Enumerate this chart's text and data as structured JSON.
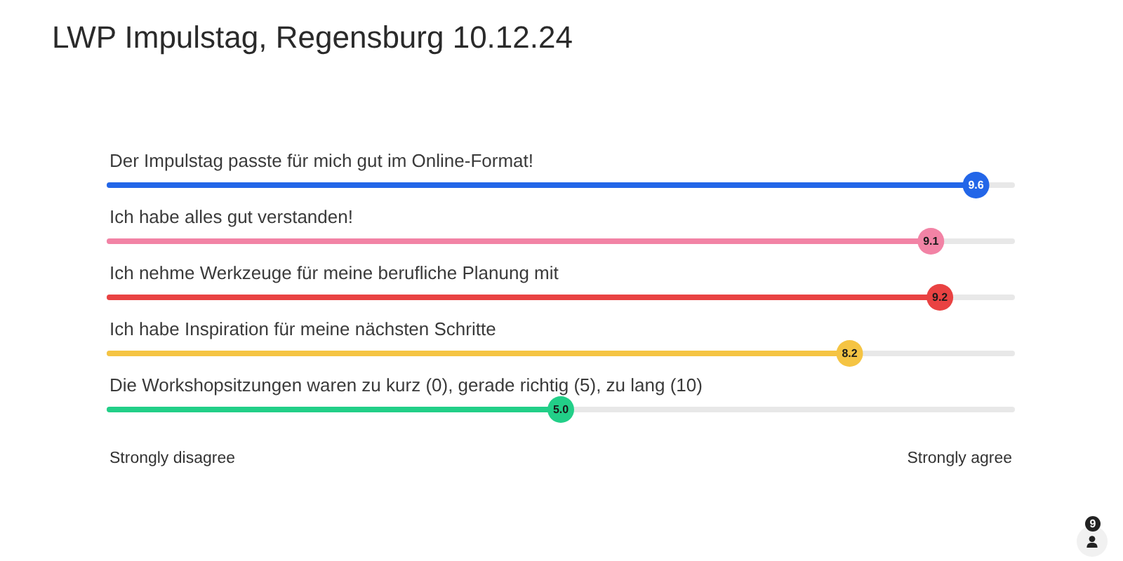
{
  "chart_data": {
    "type": "lollipop",
    "orientation": "horizontal",
    "title": "LWP Impulstag, Regensburg 10.12.24",
    "categories": [
      "Der Impulstag passte für mich gut im Online-Format!",
      "Ich habe alles gut verstanden!",
      "Ich nehme Werkzeuge für meine berufliche Planung mit",
      "Ich habe Inspiration für meine nächsten Schritte",
      "Die Workshopsitzungen waren zu kurz (0), gerade richtig (5), zu lang (10)"
    ],
    "values": [
      9.6,
      9.1,
      9.2,
      8.2,
      5.0
    ],
    "value_labels": [
      "9.6",
      "9.1",
      "9.2",
      "8.2",
      "5.0"
    ],
    "colors": [
      "#2366e8",
      "#f283a5",
      "#e94242",
      "#f5c443",
      "#22cf88"
    ],
    "marker": "circle",
    "grid": "y",
    "annotations": [
      "Strongly disagree",
      "Strongly agree",
      "9"
    ]
  }
}
